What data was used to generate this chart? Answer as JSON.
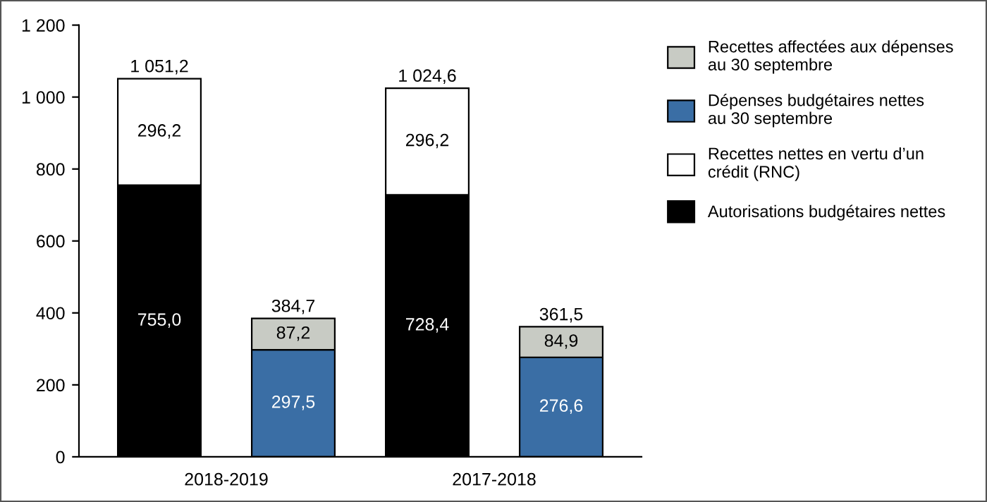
{
  "chart_data": {
    "type": "bar",
    "stacked": true,
    "categories": [
      "2018-2019",
      null,
      "2017-2018",
      null
    ],
    "series": [
      {
        "name": "Autorisations budgétaires nettes",
        "color": "#000000",
        "values": [
          755.0,
          null,
          728.4,
          null
        ],
        "value_labels": [
          "755,0",
          null,
          "728,4",
          null
        ]
      },
      {
        "name": "Recettes nettes en vertu d’un\ncrédit (RNC)",
        "color": "#ffffff",
        "values": [
          296.2,
          null,
          296.2,
          null
        ],
        "value_labels": [
          "296,2",
          null,
          "296,2",
          null
        ]
      },
      {
        "name": "Dépenses budgétaires nettes\nau 30 septembre",
        "color": "#3a6ea5",
        "values": [
          null,
          297.5,
          null,
          276.6
        ],
        "value_labels": [
          null,
          "297,5",
          null,
          "276,6"
        ]
      },
      {
        "name": "Recettes affectées aux dépenses\nau 30 septembre",
        "color": "#c8cbc4",
        "values": [
          null,
          87.2,
          null,
          84.9
        ],
        "value_labels": [
          null,
          "87,2",
          null,
          "84,9"
        ]
      }
    ],
    "totals": [
      "1 051,2",
      "384,7",
      "1 024,6",
      "361,5"
    ],
    "ylim": [
      0,
      1200
    ],
    "yticks": [
      0,
      200,
      400,
      600,
      800,
      {
        "value": 1000,
        "label": "1 000"
      },
      {
        "value": 1200,
        "label": "1 200"
      }
    ],
    "grid": false,
    "legend": "right"
  }
}
